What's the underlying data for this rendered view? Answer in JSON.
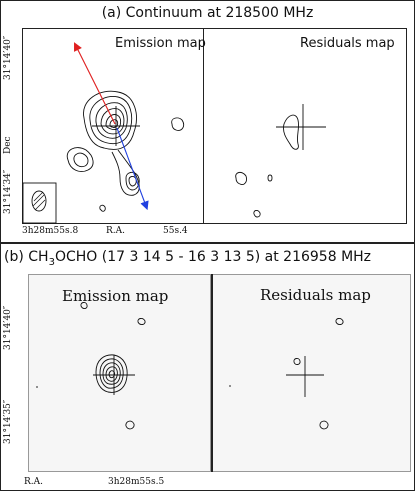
{
  "panel_a": {
    "title": "(a) Continuum at 218500 MHz",
    "emission_label": "Emission map",
    "residuals_label": "Residuals map",
    "dec_tick_top": "31°14′40″",
    "dec_tick_bottom": "31°14′34″",
    "dec_axis": "Dec",
    "ra_tick_left": "3h28m55s.8",
    "ra_axis": "R.A.",
    "ra_tick_right": "55s.4"
  },
  "panel_b": {
    "title_prefix": "(b) CH",
    "title_sub3": "3",
    "title_mid": "OCHO (17 3 14 5 - 16 3 13 5) at 216958 MHz",
    "emission_label": "Emission map",
    "residuals_label": "Residuals map",
    "dec_tick_top": "31°14′40″",
    "dec_tick_bottom": "31°14′35″",
    "ra_axis": "R.A.",
    "ra_tick": "3h28m55s.5"
  },
  "colors": {
    "arrow_red": "#e02020",
    "arrow_blue": "#2040e0",
    "contour": "#111111"
  }
}
